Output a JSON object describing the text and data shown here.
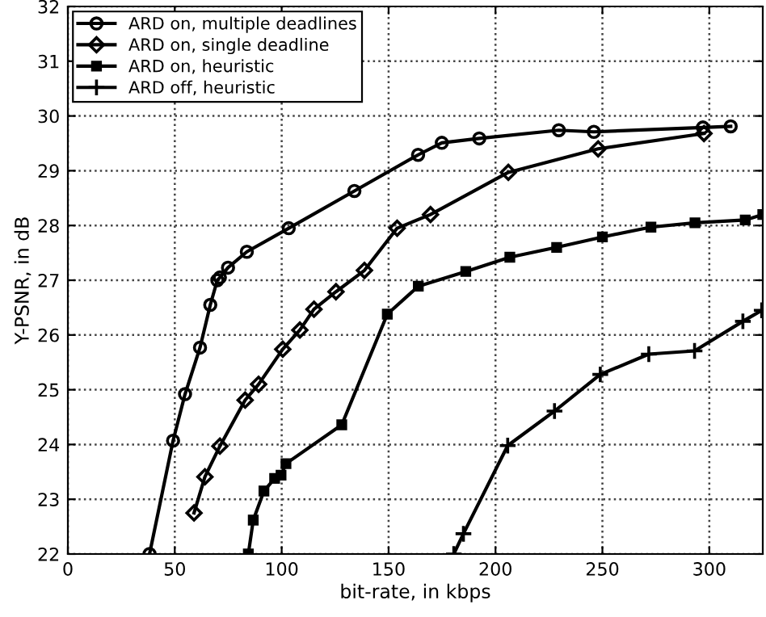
{
  "chart_data": {
    "type": "line",
    "xlabel": "bit-rate, in kbps",
    "ylabel": "Y-PSNR, in dB",
    "xlim": [
      0,
      325
    ],
    "ylim": [
      22,
      32
    ],
    "xticks": [
      0,
      50,
      100,
      150,
      200,
      250,
      300
    ],
    "yticks": [
      22,
      23,
      24,
      25,
      26,
      27,
      28,
      29,
      30,
      31,
      32
    ],
    "grid": true,
    "legend": "top left",
    "line_style": "solid",
    "series": [
      {
        "name": "ARD on, multiple deadlines",
        "color": "#000000",
        "marker": "circle",
        "x": [
          38.2,
          49.2,
          54.8,
          61.8,
          66.6,
          69.9,
          71.1,
          74.9,
          83.7,
          103.3,
          134,
          163.8,
          174.9,
          192.4,
          229.6,
          246,
          297,
          310
        ],
        "values": [
          22,
          24.07,
          24.92,
          25.77,
          26.55,
          27.0,
          27.05,
          27.23,
          27.52,
          27.95,
          28.63,
          29.29,
          29.51,
          29.59,
          29.74,
          29.71,
          29.79,
          29.81
        ]
      },
      {
        "name": "ARD on, single deadline",
        "color": "#000000",
        "marker": "diamond",
        "x": [
          59.0,
          64.1,
          71.1,
          82.9,
          89.2,
          100.5,
          108.5,
          115.1,
          125.4,
          138.7,
          154,
          169.6,
          206,
          248,
          297.5
        ],
        "values": [
          22.75,
          23.41,
          23.97,
          24.81,
          25.1,
          25.74,
          26.09,
          26.47,
          26.79,
          27.18,
          27.95,
          28.2,
          28.97,
          29.4,
          29.68
        ]
      },
      {
        "name": "ARD on, heuristic",
        "color": "#000000",
        "marker": "square",
        "x": [
          84.4,
          86.7,
          91.7,
          96.7,
          99.7,
          102,
          128.1,
          149.4,
          163.9,
          186.1,
          206.7,
          228.6,
          250,
          272.7,
          293.3,
          316.8,
          325
        ],
        "values": [
          22,
          22.62,
          23.15,
          23.38,
          23.44,
          23.65,
          24.36,
          26.38,
          26.89,
          27.16,
          27.42,
          27.6,
          27.79,
          27.97,
          28.05,
          28.1,
          28.2
        ]
      },
      {
        "name": "ARD off, heuristic",
        "color": "#000000",
        "marker": "cross",
        "x": [
          180.5,
          185.0,
          205.7,
          227.6,
          249,
          271.7,
          293.1,
          315.7,
          324.5
        ],
        "values": [
          22,
          22.37,
          23.98,
          24.61,
          25.28,
          25.65,
          25.71,
          26.25,
          26.45
        ]
      }
    ]
  }
}
